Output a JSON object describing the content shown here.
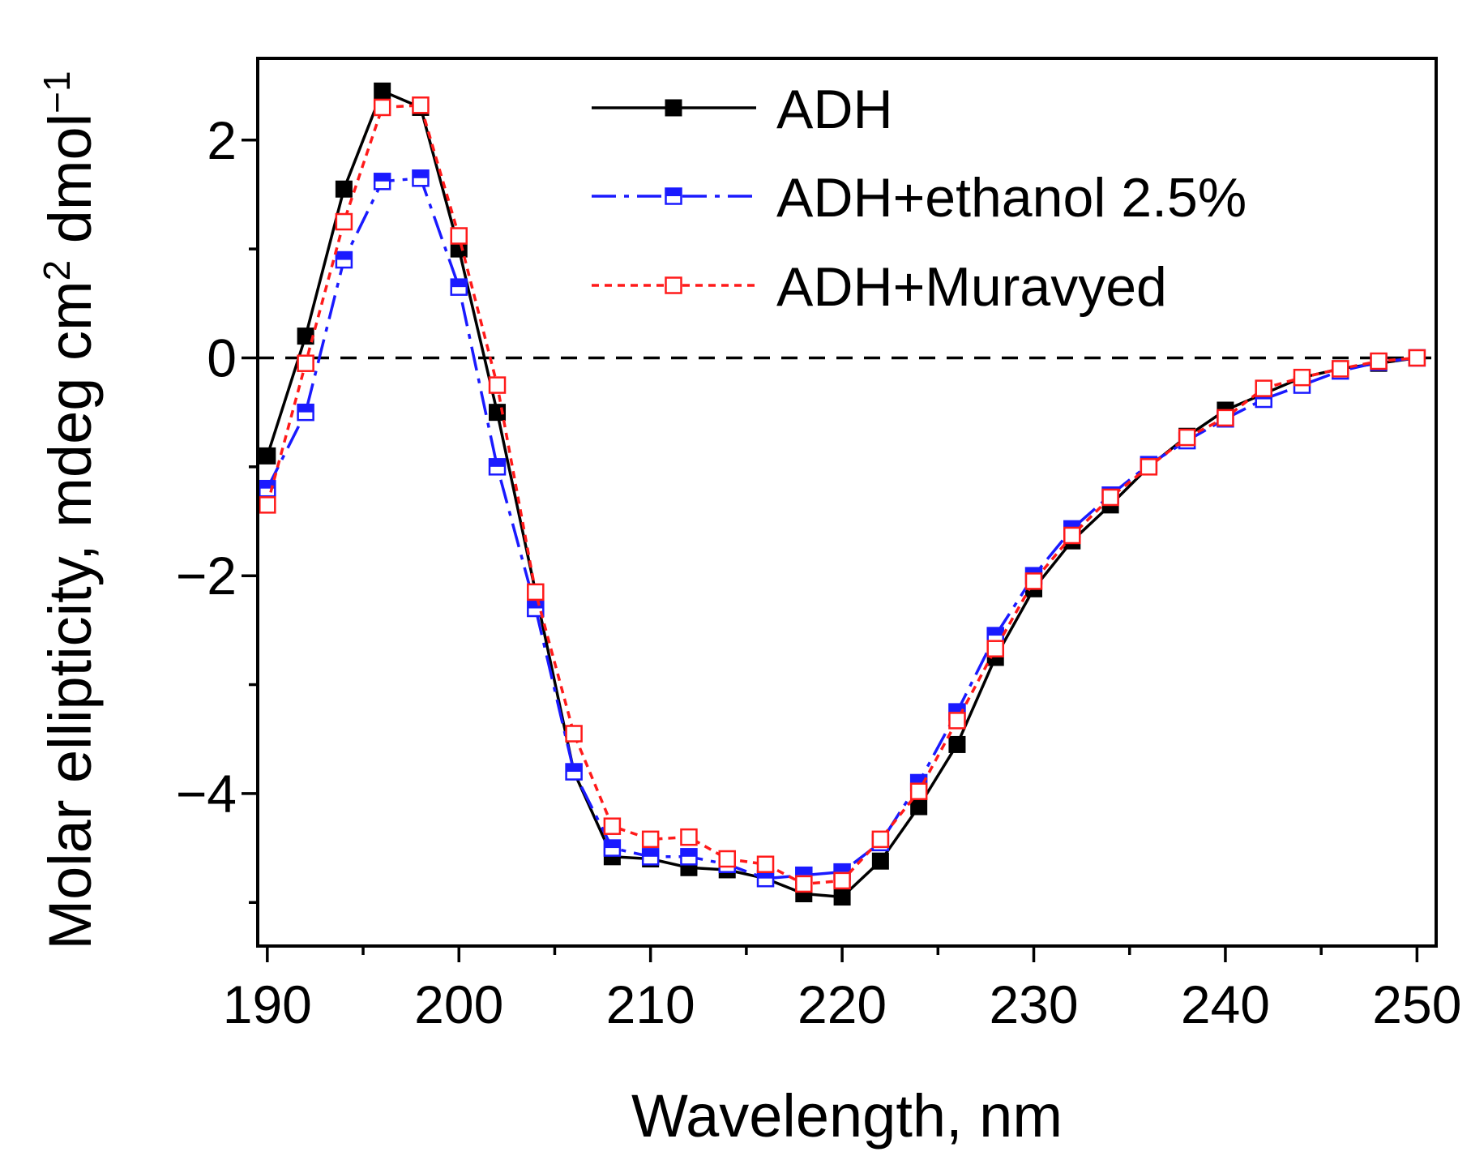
{
  "chart_data": {
    "type": "line",
    "xlabel": "Wavelength, nm",
    "ylabel": {
      "main": "Molar ellipticity, mdeg cm",
      "sup1": "2",
      "mid": " dmol",
      "sup2": "−1"
    },
    "xlim": [
      189.5,
      251
    ],
    "ylim": [
      -5.4,
      2.75
    ],
    "x_ticks": [
      190,
      200,
      210,
      220,
      230,
      240,
      250
    ],
    "x_tick_labels": [
      "190",
      "200",
      "210",
      "220",
      "230",
      "240",
      "250"
    ],
    "y_ticks": [
      2,
      0,
      -2,
      -4
    ],
    "y_tick_labels": [
      "2",
      "0",
      "−2",
      "−4"
    ],
    "zero_line": 0,
    "x": [
      190,
      192,
      194,
      196,
      198,
      200,
      202,
      204,
      206,
      208,
      210,
      212,
      214,
      216,
      218,
      220,
      222,
      224,
      226,
      228,
      230,
      232,
      234,
      236,
      238,
      240,
      242,
      244,
      246,
      248,
      250
    ],
    "series": [
      {
        "name": "ADH",
        "color": "#000000",
        "marker": "filled-square",
        "line": "solid",
        "values": [
          -0.9,
          0.2,
          1.55,
          2.45,
          2.3,
          1.0,
          -0.5,
          -2.15,
          -3.8,
          -4.58,
          -4.6,
          -4.68,
          -4.7,
          -4.78,
          -4.92,
          -4.95,
          -4.62,
          -4.12,
          -3.55,
          -2.75,
          -2.12,
          -1.68,
          -1.35,
          -1.0,
          -0.72,
          -0.48,
          -0.33,
          -0.18,
          -0.1,
          -0.05,
          0.0
        ]
      },
      {
        "name": "ADH+ethanol 2.5%",
        "color": "#1a1aff",
        "marker": "half-square",
        "line": "dash-dot",
        "values": [
          -1.2,
          -0.5,
          0.9,
          1.62,
          1.65,
          0.65,
          -1.0,
          -2.3,
          -3.8,
          -4.5,
          -4.58,
          -4.58,
          -4.65,
          -4.78,
          -4.75,
          -4.72,
          -4.45,
          -3.9,
          -3.25,
          -2.55,
          -2.0,
          -1.57,
          -1.26,
          -0.98,
          -0.76,
          -0.56,
          -0.38,
          -0.25,
          -0.12,
          -0.04,
          0.0
        ]
      },
      {
        "name": "ADH+Muravyed",
        "color": "#ff1a1a",
        "marker": "open-square",
        "line": "dotted",
        "values": [
          -1.35,
          -0.05,
          1.25,
          2.3,
          2.32,
          1.12,
          -0.25,
          -2.15,
          -3.45,
          -4.3,
          -4.42,
          -4.4,
          -4.6,
          -4.65,
          -4.83,
          -4.8,
          -4.42,
          -3.98,
          -3.33,
          -2.67,
          -2.05,
          -1.63,
          -1.28,
          -1.0,
          -0.73,
          -0.55,
          -0.28,
          -0.18,
          -0.1,
          -0.03,
          0.0
        ]
      }
    ]
  }
}
